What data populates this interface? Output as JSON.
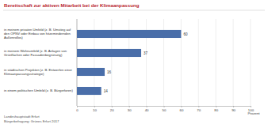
{
  "chart_data": {
    "type": "bar",
    "orientation": "horizontal",
    "title": "Bereitschaft zur aktiven Mitarbeit bei der Klimaanpassung",
    "categories": [
      "in meinem privaten Umfeld (z. B. Umstieg auf den ÖPNV oder Einbau von hitzemindernden Außenrollos)",
      "in meinem Wohnumfeld (z. B. Anlagen von Grünflächen oder Fassadenbegrünung)",
      "in städtischen Projekten (z. B. Entwerfen einer Klimaanpassungsstrategie)",
      "in einem politischen Umfeld (z. B. Bürgerforen)"
    ],
    "values": [
      60,
      37,
      16,
      14
    ],
    "color": "#4a6ea9",
    "xlim": [
      0,
      100
    ],
    "xticks": [
      0,
      10,
      20,
      30,
      40,
      50,
      60,
      70,
      80,
      90,
      100
    ],
    "xlabel": "Prozent",
    "grid": true,
    "data_labels": true,
    "annotations": [
      "Landeshauptstadt Erfurt",
      "Bürgerbefragung: Grünes Erfurt 2017"
    ]
  }
}
